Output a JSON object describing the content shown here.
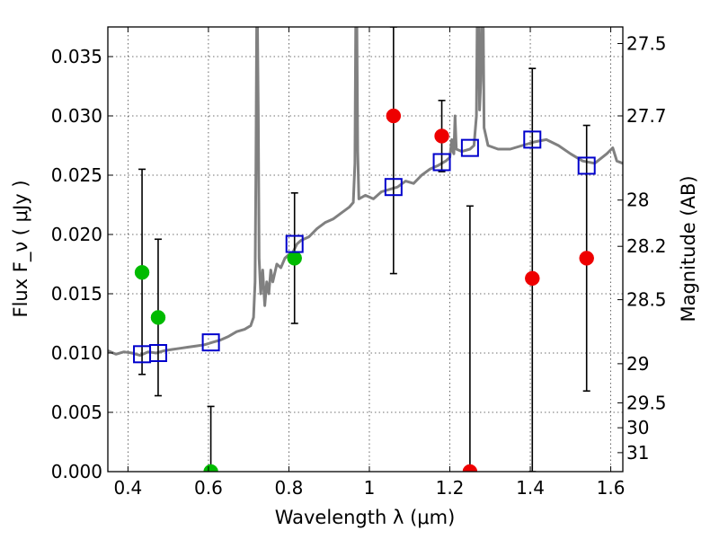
{
  "chart_data": {
    "type": "scatter",
    "xlabel": "Wavelength  λ (μm)",
    "ylabel": "Flux  F_ν  ( μJy )",
    "ylabel_right": "Magnitude (AB)",
    "xlim": [
      0.35,
      1.63
    ],
    "ylim": [
      0.0,
      0.0375
    ],
    "grid": true,
    "x_ticks": [
      {
        "value": 0.4,
        "label": "0.4"
      },
      {
        "value": 0.6,
        "label": "0.6"
      },
      {
        "value": 0.8,
        "label": "0.8"
      },
      {
        "value": 1.0,
        "label": "1"
      },
      {
        "value": 1.2,
        "label": "1.2"
      },
      {
        "value": 1.4,
        "label": "1.4"
      },
      {
        "value": 1.6,
        "label": "1.6"
      }
    ],
    "y_ticks": [
      {
        "value": 0.0,
        "label": "0.000"
      },
      {
        "value": 0.005,
        "label": "0.005"
      },
      {
        "value": 0.01,
        "label": "0.010"
      },
      {
        "value": 0.015,
        "label": "0.015"
      },
      {
        "value": 0.02,
        "label": "0.020"
      },
      {
        "value": 0.025,
        "label": "0.025"
      },
      {
        "value": 0.03,
        "label": "0.030"
      },
      {
        "value": 0.035,
        "label": "0.035"
      }
    ],
    "right_ticks": [
      {
        "flux": 0.0361,
        "label": "27.5"
      },
      {
        "flux": 0.03,
        "label": "27.7"
      },
      {
        "flux": 0.0229,
        "label": "28"
      },
      {
        "flux": 0.019,
        "label": "28.2"
      },
      {
        "flux": 0.0145,
        "label": "28.5"
      },
      {
        "flux": 0.0091,
        "label": "29"
      },
      {
        "flux": 0.0058,
        "label": "29.5"
      },
      {
        "flux": 0.0037,
        "label": "30"
      },
      {
        "flux": 0.0016,
        "label": "31"
      }
    ],
    "colors": {
      "sed": "#808080",
      "model_box": "#0000cc",
      "optical": "#00bb00",
      "nir": "#ee0000",
      "errorbar": "#000000"
    },
    "sed_spectrum": [
      [
        0.35,
        0.0102
      ],
      [
        0.37,
        0.0099
      ],
      [
        0.39,
        0.0101
      ],
      [
        0.41,
        0.01
      ],
      [
        0.43,
        0.0098
      ],
      [
        0.45,
        0.0101
      ],
      [
        0.47,
        0.01
      ],
      [
        0.49,
        0.0102
      ],
      [
        0.51,
        0.0103
      ],
      [
        0.53,
        0.0104
      ],
      [
        0.55,
        0.0105
      ],
      [
        0.57,
        0.0106
      ],
      [
        0.59,
        0.0107
      ],
      [
        0.61,
        0.0109
      ],
      [
        0.63,
        0.0111
      ],
      [
        0.65,
        0.0114
      ],
      [
        0.67,
        0.0118
      ],
      [
        0.69,
        0.012
      ],
      [
        0.705,
        0.0123
      ],
      [
        0.712,
        0.013
      ],
      [
        0.716,
        0.016
      ],
      [
        0.718,
        0.025
      ],
      [
        0.72,
        0.0375
      ],
      [
        0.722,
        0.0375
      ],
      [
        0.724,
        0.03
      ],
      [
        0.726,
        0.018
      ],
      [
        0.73,
        0.015
      ],
      [
        0.735,
        0.017
      ],
      [
        0.74,
        0.014
      ],
      [
        0.745,
        0.016
      ],
      [
        0.75,
        0.015
      ],
      [
        0.755,
        0.017
      ],
      [
        0.76,
        0.016
      ],
      [
        0.77,
        0.0175
      ],
      [
        0.78,
        0.0172
      ],
      [
        0.79,
        0.018
      ],
      [
        0.8,
        0.0183
      ],
      [
        0.81,
        0.0185
      ],
      [
        0.82,
        0.0192
      ],
      [
        0.83,
        0.0195
      ],
      [
        0.85,
        0.0198
      ],
      [
        0.87,
        0.0205
      ],
      [
        0.89,
        0.021
      ],
      [
        0.91,
        0.0213
      ],
      [
        0.93,
        0.0218
      ],
      [
        0.95,
        0.0223
      ],
      [
        0.96,
        0.0227
      ],
      [
        0.964,
        0.026
      ],
      [
        0.966,
        0.0375
      ],
      [
        0.969,
        0.0375
      ],
      [
        0.971,
        0.027
      ],
      [
        0.974,
        0.023
      ],
      [
        0.99,
        0.0233
      ],
      [
        1.01,
        0.023
      ],
      [
        1.03,
        0.0236
      ],
      [
        1.05,
        0.0238
      ],
      [
        1.07,
        0.024
      ],
      [
        1.09,
        0.0245
      ],
      [
        1.11,
        0.0243
      ],
      [
        1.13,
        0.025
      ],
      [
        1.15,
        0.0255
      ],
      [
        1.17,
        0.0258
      ],
      [
        1.19,
        0.0262
      ],
      [
        1.2,
        0.0265
      ],
      [
        1.205,
        0.028
      ],
      [
        1.208,
        0.027
      ],
      [
        1.21,
        0.0268
      ],
      [
        1.213,
        0.03
      ],
      [
        1.216,
        0.0272
      ],
      [
        1.23,
        0.027
      ],
      [
        1.25,
        0.0272
      ],
      [
        1.26,
        0.0275
      ],
      [
        1.266,
        0.03
      ],
      [
        1.268,
        0.0375
      ],
      [
        1.272,
        0.0375
      ],
      [
        1.274,
        0.0305
      ],
      [
        1.277,
        0.033
      ],
      [
        1.279,
        0.0375
      ],
      [
        1.283,
        0.0375
      ],
      [
        1.285,
        0.029
      ],
      [
        1.295,
        0.0275
      ],
      [
        1.32,
        0.0272
      ],
      [
        1.35,
        0.0272
      ],
      [
        1.38,
        0.0275
      ],
      [
        1.41,
        0.0278
      ],
      [
        1.44,
        0.028
      ],
      [
        1.47,
        0.0275
      ],
      [
        1.5,
        0.0268
      ],
      [
        1.53,
        0.0262
      ],
      [
        1.56,
        0.026
      ],
      [
        1.59,
        0.0268
      ],
      [
        1.605,
        0.0273
      ],
      [
        1.615,
        0.0262
      ],
      [
        1.63,
        0.026
      ]
    ],
    "model_points": [
      {
        "x": 0.435,
        "y": 0.0099
      },
      {
        "x": 0.475,
        "y": 0.01
      },
      {
        "x": 0.606,
        "y": 0.0109
      },
      {
        "x": 0.814,
        "y": 0.0192
      },
      {
        "x": 1.06,
        "y": 0.024
      },
      {
        "x": 1.18,
        "y": 0.0261
      },
      {
        "x": 1.25,
        "y": 0.0273
      },
      {
        "x": 1.405,
        "y": 0.028
      },
      {
        "x": 1.54,
        "y": 0.0258
      }
    ],
    "observed_points": [
      {
        "x": 0.435,
        "y": 0.0168,
        "err_low": 0.0082,
        "err_high": 0.0255,
        "band": "optical"
      },
      {
        "x": 0.475,
        "y": 0.013,
        "err_low": 0.0064,
        "err_high": 0.0196,
        "band": "optical"
      },
      {
        "x": 0.606,
        "y": 0.0,
        "err_low": 0.0,
        "err_high": 0.0055,
        "band": "optical"
      },
      {
        "x": 0.814,
        "y": 0.018,
        "err_low": 0.0125,
        "err_high": 0.0235,
        "band": "optical"
      },
      {
        "x": 1.06,
        "y": 0.03,
        "err_low": 0.0167,
        "err_high": 0.0375,
        "band": "nir"
      },
      {
        "x": 1.18,
        "y": 0.0283,
        "err_low": 0.0253,
        "err_high": 0.0313,
        "band": "nir"
      },
      {
        "x": 1.25,
        "y": 0.0,
        "err_low": 0.0,
        "err_high": 0.0224,
        "band": "nir"
      },
      {
        "x": 1.405,
        "y": 0.0163,
        "err_low": 0.0,
        "err_high": 0.034,
        "band": "nir"
      },
      {
        "x": 1.54,
        "y": 0.018,
        "err_low": 0.0068,
        "err_high": 0.0292,
        "band": "nir"
      }
    ]
  }
}
